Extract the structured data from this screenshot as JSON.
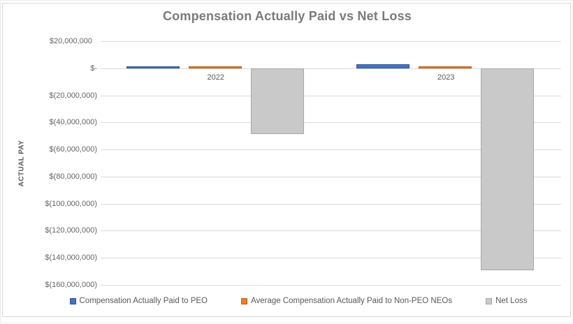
{
  "window": {
    "background": "#FFFFFF",
    "frame_border_color": "#D9D9D9"
  },
  "chart_data": {
    "type": "bar",
    "title": "Compensation Actually Paid vs Net Loss",
    "ylabel": "ACTUAL PAY",
    "xlabel": "",
    "categories": [
      "2022",
      "2023"
    ],
    "series": [
      {
        "name": "Compensation Actually Paid to PEO",
        "color": "#4472C4",
        "border_color": "#2E5596",
        "values": [
          1400000,
          3000000
        ]
      },
      {
        "name": "Average Compensation Actually Paid to Non-PEO NEOs",
        "color": "#ED7D31",
        "border_color": "#C55A11",
        "values": [
          1000000,
          1400000
        ]
      },
      {
        "name": "Net Loss",
        "color": "#C9C9C9",
        "border_color": "#A6A6A6",
        "values": [
          -48700000,
          -149400000
        ]
      }
    ],
    "ylim": [
      -160000000,
      20000000
    ],
    "ytick_values": [
      20000000,
      0,
      -20000000,
      -40000000,
      -60000000,
      -80000000,
      -100000000,
      -120000000,
      -140000000,
      -160000000
    ],
    "ytick_labels": [
      "$20,000,000",
      "$-",
      "$(20,000,000)",
      "$(40,000,000)",
      "$(60,000,000)",
      "$(80,000,000)",
      "$(100,000,000)",
      "$(120,000,000)",
      "$(140,000,000)",
      "$(160,000,000)"
    ],
    "grid": true,
    "grid_color": "#D9D9D9",
    "legend_position": "bottom",
    "text_color": "#595959",
    "tick_color": "#646464",
    "title_color": "#7A7A7A"
  }
}
